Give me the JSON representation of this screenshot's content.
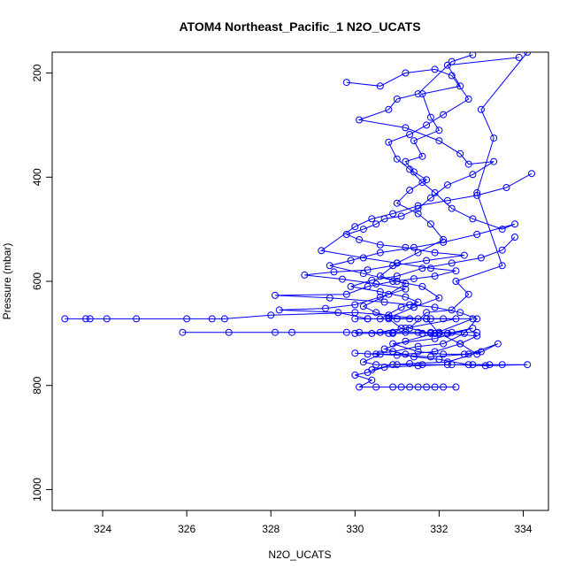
{
  "chart_data": {
    "type": "line",
    "title": "ATOM4 Northeast_Pacific_1 N2O_UCATS",
    "xlabel": "N2O_UCATS",
    "ylabel": "Pressure (mbar)",
    "xlim": [
      322.8,
      334.6
    ],
    "ylim": [
      1040,
      160
    ],
    "y_reversed": true,
    "x_ticks": [
      324,
      326,
      328,
      330,
      332,
      334
    ],
    "y_ticks": [
      200,
      400,
      600,
      800,
      1000
    ],
    "grid": false,
    "legend": "none",
    "marker": "open-circle",
    "series_color": "#0000ff",
    "series": [
      {
        "points": [
          [
            334.1,
            160
          ],
          [
            333.0,
            270
          ],
          [
            333.3,
            325
          ],
          [
            332.9,
            430
          ],
          [
            333.5,
            570
          ],
          [
            332.4,
            600
          ],
          [
            332.7,
            625
          ],
          [
            332.3,
            655
          ],
          [
            331.7,
            660
          ],
          [
            331.3,
            690
          ],
          [
            331.8,
            700
          ],
          [
            332.2,
            700
          ],
          [
            332.9,
            705
          ],
          [
            332.5,
            720
          ],
          [
            331.9,
            735
          ],
          [
            331.2,
            740
          ],
          [
            330.6,
            740
          ],
          [
            330.2,
            755
          ],
          [
            330.5,
            760
          ],
          [
            331.0,
            760
          ],
          [
            331.6,
            760
          ],
          [
            332.2,
            760
          ],
          [
            332.8,
            760
          ],
          [
            333.5,
            760
          ],
          [
            334.1,
            760
          ],
          [
            333.1,
            762
          ],
          [
            332.3,
            760
          ],
          [
            331.5,
            762
          ],
          [
            330.7,
            765
          ],
          [
            330.3,
            775
          ],
          [
            330.0,
            780
          ],
          [
            330.4,
            790
          ],
          [
            330.1,
            803
          ],
          [
            330.5,
            803
          ],
          [
            330.9,
            803
          ],
          [
            331.1,
            803
          ],
          [
            331.3,
            803
          ],
          [
            331.5,
            803
          ],
          [
            331.7,
            803
          ],
          [
            331.9,
            803
          ],
          [
            332.1,
            803
          ],
          [
            332.4,
            803
          ]
        ]
      },
      {
        "points": [
          [
            333.9,
            170
          ],
          [
            332.2,
            185
          ],
          [
            332.5,
            225
          ],
          [
            331.6,
            240
          ],
          [
            331.8,
            285
          ],
          [
            332.0,
            310
          ],
          [
            331.4,
            330
          ],
          [
            331.6,
            360
          ],
          [
            331.2,
            370
          ],
          [
            331.4,
            390
          ],
          [
            331.7,
            405
          ],
          [
            331.3,
            425
          ],
          [
            331.0,
            450
          ],
          [
            331.5,
            470
          ],
          [
            331.8,
            490
          ],
          [
            332.1,
            520
          ],
          [
            331.5,
            545
          ],
          [
            331.0,
            565
          ],
          [
            330.6,
            590
          ],
          [
            331.2,
            605
          ],
          [
            330.8,
            625
          ],
          [
            330.2,
            648
          ],
          [
            330.5,
            660
          ],
          [
            331.0,
            672
          ],
          [
            331.8,
            672
          ],
          [
            332.4,
            672
          ],
          [
            331.2,
            690
          ],
          [
            330.4,
            700
          ],
          [
            330.0,
            700
          ],
          [
            330.8,
            700
          ],
          [
            331.6,
            700
          ],
          [
            332.2,
            700
          ],
          [
            332.8,
            690
          ],
          [
            331.9,
            710
          ],
          [
            330.9,
            720
          ],
          [
            331.5,
            735
          ],
          [
            332.1,
            740
          ],
          [
            332.6,
            740
          ],
          [
            333.0,
            735
          ],
          [
            332.2,
            755
          ],
          [
            331.3,
            758
          ],
          [
            330.9,
            760
          ],
          [
            330.4,
            770
          ]
        ]
      },
      {
        "points": [
          [
            332.8,
            165
          ],
          [
            332.3,
            178
          ],
          [
            331.5,
            240
          ],
          [
            331.0,
            250
          ],
          [
            330.8,
            270
          ],
          [
            330.1,
            290
          ],
          [
            331.2,
            305
          ],
          [
            332.0,
            330
          ],
          [
            332.5,
            355
          ],
          [
            332.7,
            375
          ],
          [
            333.3,
            370
          ],
          [
            332.8,
            395
          ],
          [
            332.2,
            415
          ],
          [
            331.8,
            440
          ],
          [
            331.5,
            460
          ],
          [
            331.1,
            475
          ],
          [
            330.7,
            480
          ],
          [
            330.5,
            490
          ],
          [
            330.2,
            500
          ],
          [
            329.8,
            510
          ],
          [
            330.1,
            520
          ],
          [
            330.6,
            530
          ],
          [
            331.2,
            535
          ],
          [
            331.9,
            545
          ],
          [
            332.6,
            550
          ],
          [
            331.7,
            560
          ],
          [
            330.9,
            570
          ],
          [
            330.3,
            578
          ],
          [
            329.5,
            582
          ],
          [
            328.8,
            588
          ],
          [
            329.7,
            596
          ],
          [
            330.5,
            605
          ],
          [
            331.2,
            615
          ],
          [
            330.6,
            630
          ],
          [
            330.0,
            645
          ],
          [
            329.3,
            652
          ],
          [
            328.2,
            655
          ],
          [
            329.6,
            660
          ],
          [
            330.3,
            672
          ],
          [
            330.8,
            672
          ],
          [
            331.1,
            690
          ],
          [
            330.9,
            700
          ]
        ]
      },
      {
        "points": [
          [
            323.1,
            672
          ],
          [
            323.6,
            672
          ],
          [
            323.7,
            672
          ],
          [
            324.1,
            672
          ],
          [
            324.8,
            672
          ],
          [
            326.0,
            672
          ],
          [
            326.6,
            672
          ],
          [
            326.9,
            672
          ],
          [
            328.0,
            665
          ],
          [
            330.0,
            660
          ],
          [
            330.8,
            665
          ],
          [
            331.5,
            672
          ],
          [
            332.1,
            672
          ]
        ]
      },
      {
        "points": [
          [
            325.9,
            698
          ],
          [
            327.0,
            698
          ],
          [
            328.1,
            698
          ],
          [
            328.5,
            698
          ],
          [
            329.8,
            698
          ],
          [
            330.1,
            698
          ],
          [
            330.6,
            698
          ],
          [
            330.9,
            698
          ],
          [
            331.2,
            698
          ],
          [
            331.5,
            698
          ],
          [
            331.8,
            698
          ],
          [
            332.0,
            698
          ],
          [
            332.3,
            698
          ],
          [
            332.9,
            698
          ]
        ]
      },
      {
        "points": [
          [
            329.8,
            218
          ],
          [
            330.6,
            225
          ],
          [
            331.2,
            200
          ],
          [
            331.9,
            193
          ],
          [
            332.3,
            205
          ],
          [
            332.7,
            250
          ],
          [
            332.1,
            280
          ],
          [
            331.7,
            300
          ],
          [
            331.3,
            318
          ],
          [
            330.8,
            333
          ],
          [
            331.0,
            365
          ],
          [
            331.3,
            385
          ],
          [
            331.6,
            410
          ],
          [
            331.9,
            430
          ],
          [
            332.3,
            460
          ],
          [
            332.8,
            480
          ],
          [
            333.5,
            500
          ],
          [
            333.8,
            490
          ],
          [
            332.9,
            510
          ],
          [
            332.1,
            525
          ],
          [
            331.4,
            535
          ],
          [
            330.6,
            545
          ],
          [
            329.9,
            560
          ],
          [
            329.4,
            570
          ],
          [
            330.2,
            585
          ],
          [
            331.0,
            600
          ],
          [
            331.6,
            610
          ],
          [
            332.0,
            632
          ],
          [
            331.4,
            650
          ],
          [
            330.8,
            670
          ],
          [
            331.3,
            672
          ],
          [
            331.7,
            672
          ],
          [
            332.0,
            700
          ],
          [
            332.5,
            720
          ],
          [
            332.9,
            740
          ],
          [
            333.4,
            720
          ],
          [
            332.7,
            740
          ],
          [
            331.8,
            745
          ],
          [
            331.0,
            742
          ],
          [
            330.5,
            740
          ],
          [
            330.0,
            738
          ]
        ]
      },
      {
        "points": [
          [
            334.2,
            393
          ],
          [
            333.6,
            420
          ],
          [
            332.9,
            435
          ],
          [
            332.2,
            445
          ],
          [
            331.5,
            455
          ],
          [
            330.9,
            470
          ],
          [
            330.4,
            480
          ],
          [
            330.0,
            495
          ],
          [
            329.2,
            541
          ],
          [
            330.2,
            555
          ],
          [
            331.0,
            565
          ],
          [
            331.8,
            575
          ],
          [
            332.4,
            580
          ],
          [
            331.9,
            590
          ],
          [
            331.4,
            595
          ],
          [
            330.9,
            600
          ],
          [
            330.3,
            610
          ],
          [
            329.8,
            625
          ],
          [
            328.1,
            627
          ],
          [
            329.4,
            632
          ],
          [
            330.7,
            640
          ],
          [
            331.3,
            645
          ],
          [
            331.9,
            650
          ],
          [
            332.5,
            660
          ],
          [
            332.9,
            672
          ],
          [
            332.6,
            700
          ],
          [
            332.1,
            720
          ],
          [
            331.5,
            725
          ],
          [
            330.9,
            735
          ],
          [
            330.3,
            740
          ]
        ]
      },
      {
        "points": [
          [
            333.8,
            515
          ],
          [
            333.5,
            540
          ],
          [
            333.0,
            555
          ],
          [
            332.3,
            565
          ],
          [
            331.6,
            575
          ],
          [
            331.0,
            590
          ],
          [
            330.4,
            598
          ],
          [
            329.9,
            610
          ],
          [
            330.6,
            620
          ],
          [
            331.2,
            630
          ],
          [
            331.5,
            640
          ],
          [
            331.1,
            650
          ],
          [
            330.6,
            672
          ],
          [
            330.3,
            672
          ],
          [
            330.0,
            672
          ],
          [
            331.7,
            672
          ],
          [
            332.8,
            672
          ],
          [
            331.9,
            700
          ],
          [
            331.2,
            715
          ],
          [
            330.7,
            730
          ],
          [
            331.4,
            745
          ],
          [
            332.0,
            750
          ],
          [
            332.7,
            760
          ],
          [
            333.2,
            760
          ]
        ]
      }
    ]
  }
}
